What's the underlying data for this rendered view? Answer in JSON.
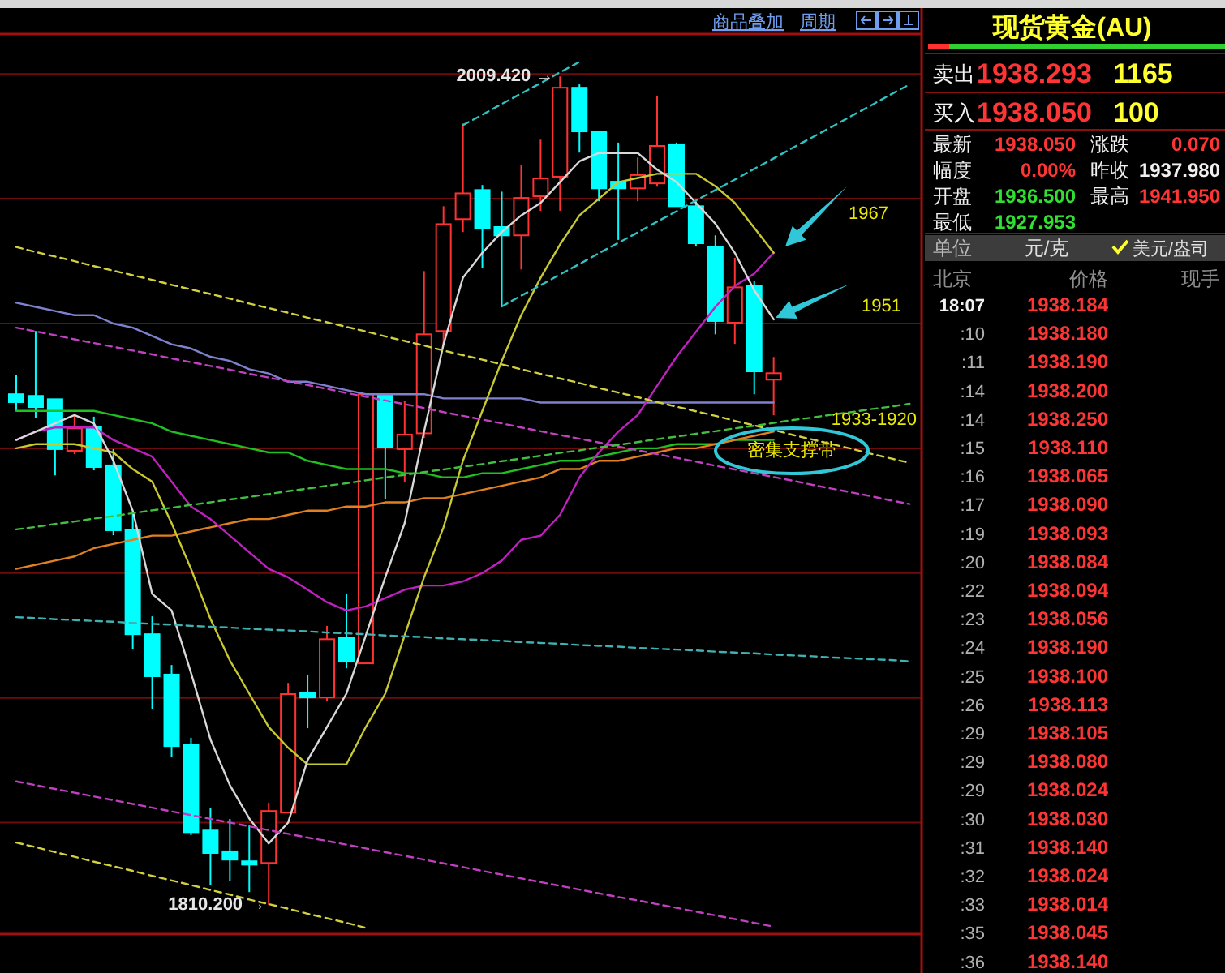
{
  "chart_data": [
    {
      "type": "candlestick",
      "categories": [
        null,
        null,
        null,
        null,
        null,
        null,
        null,
        null,
        null,
        null,
        null,
        null,
        null,
        null,
        null,
        null,
        null,
        null,
        null,
        null,
        null,
        null,
        null,
        null,
        null,
        null,
        null,
        null,
        null,
        null,
        null,
        null,
        null,
        null,
        null,
        null,
        null,
        null,
        null,
        null,
        null,
        null,
        null,
        null,
        null,
        null,
        null
      ],
      "ohlc": [
        [
          1933.0,
          1937.7,
          1929.1,
          1931.1
        ],
        [
          1932.6,
          1948.2,
          1927.2,
          1929.9
        ],
        [
          1931.8,
          1931.8,
          1913.5,
          1919.8
        ],
        [
          1919.4,
          1927.9,
          1918.6,
          1924.8
        ],
        [
          1925.2,
          1927.6,
          1914.7,
          1915.5
        ],
        [
          1915.9,
          1919.8,
          1899.1,
          1900.3
        ],
        [
          1900.3,
          1904.5,
          1871.8,
          1875.3
        ],
        [
          1875.3,
          1879.6,
          1857.4,
          1865.2
        ],
        [
          1865.6,
          1867.9,
          1845.7,
          1848.4
        ],
        [
          1848.8,
          1850.4,
          1827.0,
          1827.7
        ],
        [
          1828.1,
          1833.6,
          1814.9,
          1822.7
        ],
        [
          1823.1,
          1830.9,
          1816.0,
          1821.1
        ],
        [
          1820.7,
          1829.3,
          1813.3,
          1819.9
        ],
        [
          1820.3,
          1834.8,
          1810.2,
          1832.8
        ],
        [
          1832.4,
          1863.6,
          1832.4,
          1860.9
        ],
        [
          1861.3,
          1865.6,
          1852.7,
          1860.1
        ],
        [
          1860.1,
          1877.3,
          1859.3,
          1874.1
        ],
        [
          1874.5,
          1885.1,
          1867.1,
          1868.7
        ],
        [
          1868.3,
          1933.0,
          1868.3,
          1933.0
        ],
        [
          1933.0,
          1933.0,
          1907.7,
          1920.2
        ],
        [
          1919.8,
          1931.4,
          1912.0,
          1923.3
        ],
        [
          1923.6,
          1962.6,
          1922.5,
          1947.4
        ],
        [
          1948.2,
          1978.2,
          1944.7,
          1973.9
        ],
        [
          1975.1,
          1998.1,
          1972.0,
          1981.3
        ],
        [
          1982.1,
          1983.3,
          1963.4,
          1972.8
        ],
        [
          1973.2,
          1981.7,
          1954.1,
          1971.2
        ],
        [
          1971.2,
          1988.0,
          1963.0,
          1980.2
        ],
        [
          1980.6,
          1994.2,
          1977.1,
          1984.9
        ],
        [
          1985.3,
          2009.42,
          1977.1,
          2006.7
        ],
        [
          2006.7,
          2007.5,
          1991.1,
          1996.2
        ],
        [
          1996.2,
          1996.2,
          1979.4,
          1982.5
        ],
        [
          1984.1,
          1993.5,
          1970.1,
          1982.5
        ],
        [
          1982.5,
          1989.9,
          1979.4,
          1985.7
        ],
        [
          1983.7,
          2004.8,
          1982.9,
          1992.7
        ],
        [
          1993.1,
          1993.5,
          1978.2,
          1978.2
        ],
        [
          1978.2,
          1979.4,
          1968.5,
          1969.3
        ],
        [
          1968.5,
          1971.2,
          1947.4,
          1950.6
        ],
        [
          1950.2,
          1965.8,
          1945.1,
          1958.7
        ],
        [
          1959.1,
          1960.3,
          1933.0,
          1938.5
        ],
        [
          1936.5,
          1941.95,
          1927.953,
          1938.05
        ],
        null,
        null,
        null,
        null,
        null,
        null,
        null
      ],
      "colors": [
        "#00ffff",
        "#00ffff",
        "#00ffff",
        "#ff3232",
        "#00ffff",
        "#00ffff",
        "#00ffff",
        "#00ffff",
        "#00ffff",
        "#00ffff",
        "#00ffff",
        "#00ffff",
        "#00ffff",
        "#ff3232",
        "#ff3232",
        "#00ffff",
        "#ff3232",
        "#00ffff",
        "#ff3232",
        "#00ffff",
        "#ff3232",
        "#ff3232",
        "#ff3232",
        "#ff3232",
        "#00ffff",
        "#00ffff",
        "#ff3232",
        "#ff3232",
        "#ff3232",
        "#00ffff",
        "#00ffff",
        "#00ffff",
        "#ff3232",
        "#ff3232",
        "#00ffff",
        "#00ffff",
        "#00ffff",
        "#ff3232",
        "#00ffff",
        "#ff3232",
        null,
        null,
        null,
        null,
        null,
        null,
        null
      ],
      "series": [
        {
          "type": "line",
          "color": "#8080d0",
          "values": [
            1955,
            1954,
            1953,
            1952,
            1952,
            1950,
            1949,
            1947,
            1945,
            1944,
            1942,
            1941,
            1939,
            1938,
            1936,
            1936,
            1935,
            1934,
            1933,
            1933,
            1933,
            1933,
            1932,
            1932,
            1932,
            1932,
            1932,
            1931,
            1931,
            1931,
            1931,
            1931,
            1931,
            1931,
            1931,
            1931,
            1931,
            1931,
            1931,
            1931,
            null,
            null,
            null,
            null,
            null,
            null,
            null
          ]
        },
        {
          "type": "line",
          "color": "#20c020",
          "values": [
            1929,
            1929,
            1929,
            1929,
            1929,
            1928,
            1927,
            1926,
            1924,
            1923,
            1922,
            1921,
            1920,
            1919,
            1919,
            1917,
            1916,
            1915,
            1915,
            1915,
            1914,
            1914,
            1913,
            1913,
            1914,
            1914,
            1915,
            1916,
            1917,
            1917,
            1918,
            1919,
            1920,
            1920,
            1921,
            1921,
            1921,
            1922,
            1922,
            1922,
            null,
            null,
            null,
            null,
            null,
            null,
            null
          ]
        },
        {
          "type": "line",
          "color": "#e08020",
          "values": [
            1891,
            1892,
            1893,
            1894,
            1896,
            1897,
            1898,
            1899,
            1899,
            1900,
            1901,
            1902,
            1903,
            1903,
            1904,
            1905,
            1905,
            1906,
            1906,
            1907,
            1907,
            1908,
            1908,
            1909,
            1910,
            1911,
            1912,
            1913,
            1915,
            1915,
            1917,
            1917,
            1918,
            1919,
            1920,
            1920,
            1921,
            1922,
            1923,
            1924,
            null,
            null,
            null,
            null,
            null,
            null,
            null
          ]
        },
        {
          "type": "line",
          "color": "#c020c0",
          "values": [
            1922,
            1924,
            1925,
            1925,
            1925,
            1922,
            1920,
            1918,
            1912,
            1906,
            1903,
            1899,
            1895,
            1891,
            1889,
            1886,
            1883,
            1881,
            1882,
            1884,
            1886,
            1887,
            1887,
            1888,
            1890,
            1893,
            1898,
            1899,
            1904,
            1913,
            1919,
            1924,
            1928,
            1935,
            1942,
            1948,
            1954,
            1959,
            1962,
            1967,
            null,
            null,
            null,
            null,
            null,
            null,
            null
          ]
        },
        {
          "type": "line",
          "color": "#c8c830",
          "values": [
            1920,
            1921,
            1921,
            1921,
            1920,
            1919,
            1915,
            1912,
            1902,
            1891,
            1879,
            1869,
            1861,
            1853,
            1848,
            1844,
            1844,
            1844,
            1853,
            1861,
            1875,
            1889,
            1901,
            1917,
            1929,
            1941,
            1952,
            1961,
            1969,
            1976,
            1980,
            1984,
            1985,
            1986,
            1986,
            1986,
            1983,
            1979,
            1973,
            1967,
            null,
            null,
            null,
            null,
            null,
            null,
            null
          ]
        },
        {
          "type": "line",
          "color": "#d8d8d8",
          "values": [
            1922,
            1924,
            1926,
            1928,
            1926,
            1917,
            1905,
            1885,
            1881,
            1866,
            1850,
            1839,
            1831,
            1825,
            1830,
            1845,
            1853,
            1861,
            1875,
            1889,
            1902,
            1924,
            1945,
            1961,
            1967,
            1972,
            1976,
            1979,
            1984,
            1989,
            1991,
            1991,
            1991,
            1987,
            1984,
            1979,
            1974,
            1967,
            1958,
            1951,
            null,
            null,
            null,
            null,
            null,
            null,
            null
          ]
        },
        {
          "type": "line",
          "color": "#30c0c0",
          "line_style": "dashed",
          "values": [
            null,
            null,
            null,
            null,
            null,
            null,
            null,
            null,
            null,
            null,
            null,
            null,
            null,
            null,
            null,
            null,
            null,
            null,
            null,
            null,
            null,
            null,
            null,
            1997.7,
            2000.2,
            2002.8,
            2005.3,
            2007.8,
            2010.4,
            2012.9,
            null,
            null,
            null,
            null,
            null,
            null,
            null,
            null,
            null,
            null,
            null,
            null,
            null,
            null,
            null,
            null,
            null
          ]
        },
        {
          "type": "line",
          "color": "#30c0c0",
          "line_style": "dashed",
          "values": [
            null,
            null,
            null,
            null,
            null,
            null,
            null,
            null,
            null,
            null,
            null,
            null,
            null,
            null,
            null,
            null,
            null,
            null,
            null,
            null,
            null,
            null,
            null,
            null,
            null,
            1954.1,
            1956.7,
            1959.2,
            1961.8,
            1964.3,
            1966.9,
            1969.4,
            1971.9,
            1974.5,
            1977.0,
            1979.6,
            1982.1,
            1984.6,
            1987.2,
            1989.7,
            1992.3,
            1994.8,
            1997.3,
            1999.9,
            2002.4,
            2005.0,
            2007.5
          ]
        },
        {
          "type": "line",
          "color": "#d0d040",
          "line_style": "dashed",
          "values": [
            1968.4,
            1967.2,
            1966.1,
            1965.0,
            1963.8,
            1962.7,
            1961.6,
            1960.5,
            1959.3,
            1958.2,
            1957.1,
            1956.0,
            1954.8,
            1953.7,
            1952.6,
            1951.4,
            1950.3,
            1949.2,
            1948.1,
            1946.9,
            1945.8,
            1944.7,
            1943.5,
            1942.4,
            1941.3,
            1940.2,
            1939.0,
            1937.9,
            1936.8,
            1935.7,
            1934.5,
            1933.4,
            1932.3,
            1931.1,
            1930.0,
            1928.9,
            1927.8,
            1926.6,
            1925.5,
            1924.4,
            1923.2,
            1922.1,
            1921.0,
            1919.9,
            1918.7,
            1917.6,
            1916.5
          ]
        },
        {
          "type": "line",
          "color": "#d0d040",
          "line_style": "dashed",
          "values": [
            1825.2,
            1824.1,
            1822.9,
            1821.8,
            1820.6,
            1819.5,
            1818.4,
            1817.2,
            1816.1,
            1815.0,
            1813.8,
            1812.7,
            1811.5,
            1810.4,
            1809.3,
            1808.1,
            1807.0,
            1805.9,
            1804.7,
            null,
            null,
            null,
            null,
            null,
            null,
            null,
            null,
            null,
            null,
            null,
            null,
            null,
            null,
            null,
            null,
            null,
            null,
            null,
            null,
            null,
            null,
            null,
            null,
            null,
            null,
            null,
            null
          ]
        },
        {
          "type": "line",
          "color": "#c040c0",
          "line_style": "dashed",
          "values": [
            1949.0,
            1948.1,
            1947.2,
            1946.2,
            1945.3,
            1944.4,
            1943.5,
            1942.6,
            1941.6,
            1940.7,
            1939.8,
            1938.9,
            1937.9,
            1937.0,
            1936.1,
            1935.2,
            1934.3,
            1933.3,
            1932.4,
            1931.5,
            1930.6,
            1929.7,
            1928.7,
            1927.8,
            1926.9,
            1926.0,
            1925.0,
            1924.1,
            1923.2,
            1922.3,
            1921.4,
            1920.4,
            1919.5,
            1918.6,
            1917.7,
            1916.8,
            1915.8,
            1914.9,
            1914.0,
            1913.1,
            1912.2,
            1911.2,
            1910.3,
            1909.4,
            1908.5,
            1907.5,
            1906.6
          ]
        },
        {
          "type": "line",
          "color": "#c040c0",
          "line_style": "dashed",
          "values": [
            1839.9,
            1839.0,
            1838.1,
            1837.2,
            1836.3,
            1835.4,
            1834.5,
            1833.6,
            1832.7,
            1831.8,
            1830.9,
            1830.0,
            1829.1,
            1828.2,
            1827.3,
            1826.4,
            1825.6,
            1824.7,
            1823.8,
            1822.9,
            1822.0,
            1821.1,
            1820.2,
            1819.3,
            1818.4,
            1817.5,
            1816.6,
            1815.7,
            1814.8,
            1813.9,
            1813.0,
            1812.1,
            1811.3,
            1810.4,
            1809.5,
            1808.6,
            1807.7,
            1806.8,
            1805.9,
            1805.0,
            null,
            null,
            null,
            null,
            null,
            null,
            null
          ]
        },
        {
          "type": "line",
          "color": "#40c040",
          "line_style": "dashed",
          "values": [
            1900.5,
            1901.1,
            1901.8,
            1902.4,
            1903.1,
            1903.7,
            1904.4,
            1905.1,
            1905.7,
            1906.4,
            1907.0,
            1907.7,
            1908.3,
            1909.0,
            1909.7,
            1910.3,
            1911.0,
            1911.6,
            1912.3,
            1913.0,
            1913.6,
            1914.3,
            1914.9,
            1915.6,
            1916.2,
            1916.9,
            1917.5,
            1918.2,
            1918.9,
            1919.5,
            1920.2,
            1920.8,
            1921.5,
            1922.2,
            1922.8,
            1923.5,
            1924.1,
            1924.8,
            1925.4,
            1926.1,
            1926.8,
            1927.4,
            1928.1,
            1928.7,
            1929.4,
            1930.0,
            1930.7
          ]
        },
        {
          "type": "line",
          "color": "#40b0b0",
          "line_style": "dashed",
          "values": [
            1879.4,
            1879.2,
            1878.9,
            1878.7,
            1878.5,
            1878.3,
            1878.0,
            1877.8,
            1877.6,
            1877.3,
            1877.1,
            1876.9,
            1876.6,
            1876.4,
            1876.2,
            1876.0,
            1875.7,
            1875.5,
            1875.3,
            1875.0,
            1874.8,
            1874.6,
            1874.3,
            1874.1,
            1873.9,
            1873.7,
            1873.4,
            1873.2,
            1873.0,
            1872.7,
            1872.5,
            1872.3,
            1872.0,
            1871.8,
            1871.6,
            1871.4,
            1871.1,
            1870.9,
            1870.7,
            1870.4,
            1870.2,
            1870.0,
            1869.7,
            1869.5,
            1869.3,
            1869.1,
            1868.8
          ]
        }
      ],
      "ylim": [
        1803.2,
        2019.6
      ],
      "yticks": [
        {
          "value": 1830,
          "label": null
        },
        {
          "value": 1860,
          "label": null
        },
        {
          "value": 1890,
          "label": null
        },
        {
          "value": 1920,
          "label": null
        },
        {
          "value": 1950,
          "label": null
        },
        {
          "value": 1980,
          "label": null
        },
        {
          "value": 2010,
          "label": null
        }
      ],
      "grid": "y",
      "annotations": [
        "2009.420 →",
        "1810.200 →",
        "1967",
        "1951",
        "1933-1920",
        "密集支撑带",
        "商品叠加",
        "周期"
      ]
    },
    {
      "type": "other",
      "title": "现货黄金(AU)",
      "annotations": [
        "卖出",
        "1938.293",
        "1165",
        "买入",
        "1938.050",
        "100",
        "最新",
        "1938.050",
        "涨跌",
        "0.070",
        "幅度",
        "0.00%",
        "昨收",
        "1937.980",
        "开盘",
        "1936.500",
        "最高",
        "1941.950",
        "最低",
        "1927.953",
        "单位",
        "元/克",
        "美元/盎司",
        "北京",
        "价格",
        "现手",
        "18:07",
        "1938.184",
        ":10",
        "1938.180",
        ":11",
        "1938.190",
        ":14",
        "1938.200",
        ":14",
        "1938.250",
        ":15",
        "1938.110",
        ":16",
        "1938.065",
        ":17",
        "1938.090",
        ":19",
        "1938.093",
        ":20",
        "1938.084",
        ":22",
        "1938.094",
        ":23",
        "1938.056",
        ":24",
        "1938.190",
        ":25",
        "1938.100",
        ":26",
        "1938.113",
        ":29",
        "1938.105",
        ":29",
        "1938.080",
        ":29",
        "1938.024",
        ":30",
        "1938.030",
        ":31",
        "1938.140",
        ":32",
        "1938.024",
        ":33",
        "1938.014",
        ":35",
        "1938.045",
        ":36",
        "1938.140"
      ]
    }
  ]
}
